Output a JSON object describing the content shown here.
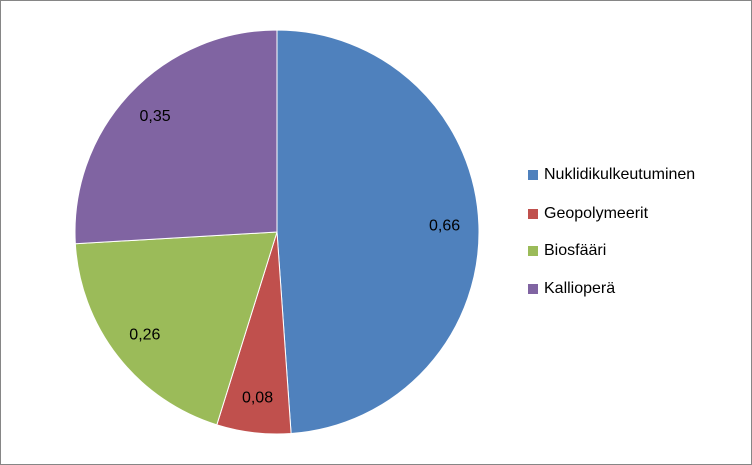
{
  "chart_data": {
    "type": "pie",
    "categories": [
      "Nuklidikulkeutuminen",
      "Geopolymeerit",
      "Biosfääri",
      "Kallioperä"
    ],
    "values": [
      0.66,
      0.08,
      0.26,
      0.35
    ],
    "value_labels": [
      "0,66",
      "0,08",
      "0,26",
      "0,35"
    ],
    "colors": [
      "#4f81bd",
      "#c0504d",
      "#9bbb59",
      "#8064a2"
    ],
    "legend": "right"
  }
}
